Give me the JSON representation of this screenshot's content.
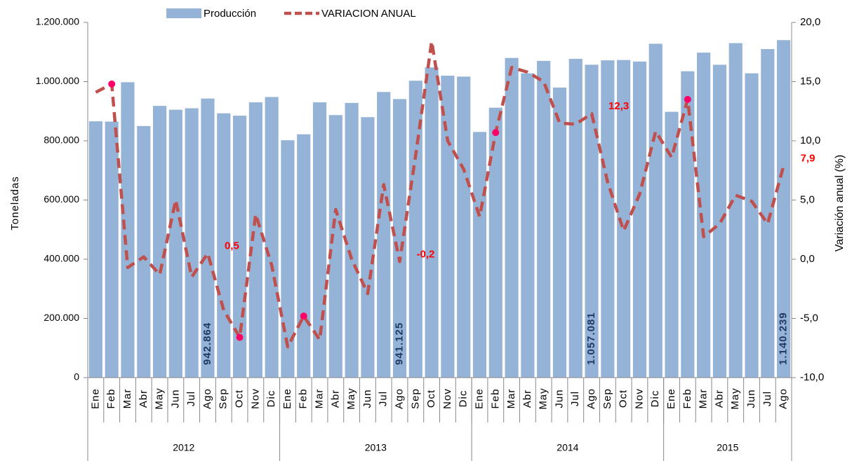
{
  "chart_data": {
    "type": "bar-line",
    "y_title": "Toneladas",
    "y2_title": "Variación anual (%)",
    "categories": [
      "Ene",
      "Feb",
      "Mar",
      "Abr",
      "May",
      "Jun",
      "Jul",
      "Ago",
      "Sep",
      "Oct",
      "Nov",
      "Dic",
      "Ene",
      "Feb",
      "Mar",
      "Abr",
      "May",
      "Jun",
      "Jul",
      "Ago",
      "Sep",
      "Oct",
      "Nov",
      "Dic",
      "Ene",
      "Feb",
      "Mar",
      "Abr",
      "May",
      "Jun",
      "Jul",
      "Ago",
      "Sep",
      "Oct",
      "Nov",
      "Dic",
      "Ene",
      "Feb",
      "Mar",
      "Abr",
      "May",
      "Jun",
      "Jul",
      "Ago"
    ],
    "groups": [
      "2012",
      "2013",
      "2014",
      "2015"
    ],
    "series": [
      {
        "name": "Producción",
        "type": "bar",
        "color": "#95b3d7",
        "values": [
          866000,
          865000,
          998000,
          850000,
          918000,
          905000,
          910000,
          942864,
          893000,
          885000,
          930000,
          948000,
          802000,
          822000,
          930000,
          887000,
          928000,
          880000,
          965000,
          941125,
          1003000,
          1048000,
          1020000,
          1017000,
          830000,
          912000,
          1080000,
          1028000,
          1070000,
          980000,
          1077000,
          1057081,
          1072000,
          1073000,
          1068000,
          1128000,
          898000,
          1035000,
          1098000,
          1057000,
          1130000,
          1028000,
          1110000,
          1140239
        ],
        "value_labels": [
          null,
          null,
          null,
          null,
          null,
          null,
          null,
          "942.864",
          null,
          null,
          null,
          null,
          null,
          null,
          null,
          null,
          null,
          null,
          null,
          "941.125",
          null,
          null,
          null,
          null,
          null,
          null,
          null,
          null,
          null,
          null,
          null,
          "1.057.081",
          null,
          null,
          null,
          null,
          null,
          null,
          null,
          null,
          null,
          null,
          null,
          "1.140.239"
        ],
        "label_color": "#1f3864"
      },
      {
        "name": "VARIACION ANUAL",
        "type": "line",
        "axis": "y2",
        "color": "#c0504d",
        "values": [
          14.1,
          14.8,
          -0.7,
          0.2,
          -1.3,
          5.0,
          -1.5,
          0.5,
          -4.3,
          -6.6,
          3.8,
          -0.5,
          -7.4,
          -4.8,
          -6.8,
          4.2,
          0.0,
          -2.9,
          6.3,
          -0.2,
          8.8,
          18.4,
          10.0,
          7.6,
          3.6,
          10.7,
          16.2,
          15.8,
          15.0,
          11.5,
          11.4,
          12.3,
          6.5,
          2.4,
          5.5,
          10.8,
          8.6,
          13.5,
          1.9,
          3.0,
          5.4,
          4.9,
          3.0,
          7.9
        ],
        "value_labels": [
          null,
          null,
          null,
          null,
          null,
          null,
          null,
          "0,5",
          null,
          null,
          null,
          null,
          null,
          null,
          null,
          null,
          null,
          null,
          null,
          "-0,2",
          null,
          null,
          null,
          null,
          null,
          null,
          null,
          null,
          null,
          null,
          null,
          "12,3",
          null,
          null,
          null,
          null,
          null,
          null,
          null,
          null,
          null,
          null,
          null,
          "7,9"
        ],
        "label_color": "#ff0000",
        "highlighted_points": [
          1,
          9,
          13,
          25,
          37
        ],
        "highlight_color": "#ff0066"
      }
    ],
    "ylim": [
      0,
      1200000
    ],
    "yticks": [
      0,
      {
        "value": 200000,
        "label": "200.000"
      },
      {
        "value": 400000,
        "label": "400.000"
      },
      {
        "value": 600000,
        "label": "600.000"
      },
      {
        "value": 800000,
        "label": "800.000"
      },
      {
        "value": 1000000,
        "label": "1.000.000"
      },
      {
        "value": 1200000,
        "label": "1.200.000"
      }
    ],
    "y2lim": [
      -10,
      20
    ],
    "y2ticks": [
      {
        "value": -10,
        "label": "-10,0"
      },
      {
        "value": -5,
        "label": "-5,0"
      },
      {
        "value": 0,
        "label": "0,0"
      },
      {
        "value": 5,
        "label": "5,0"
      },
      {
        "value": 10,
        "label": "10,0"
      },
      {
        "value": 15,
        "label": "15,0"
      },
      {
        "value": 20,
        "label": "20,0"
      }
    ],
    "legend": "top"
  }
}
